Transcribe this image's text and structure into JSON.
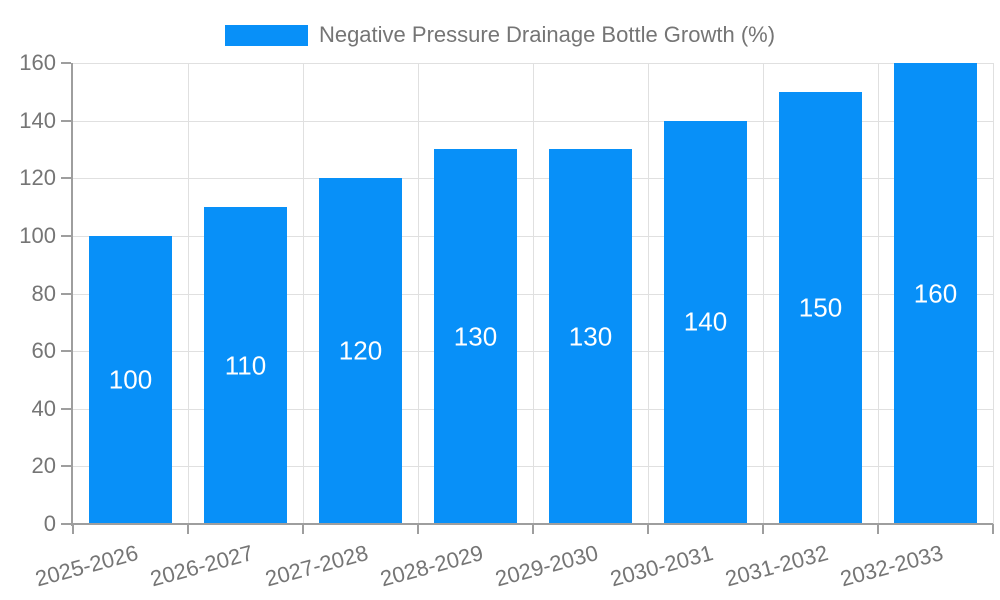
{
  "chart_data": {
    "type": "bar",
    "categories": [
      "2025-2026",
      "2026-2027",
      "2027-2028",
      "2028-2029",
      "2029-2030",
      "2030-2031",
      "2031-2032",
      "2032-2033"
    ],
    "series": [
      {
        "name": "Negative Pressure Drainage Bottle Growth (%)",
        "values": [
          100,
          110,
          120,
          130,
          130,
          140,
          150,
          160
        ]
      }
    ],
    "xlabel": "",
    "ylabel": "",
    "ylim": [
      0,
      160
    ],
    "yticks": [
      0,
      20,
      40,
      60,
      80,
      100,
      120,
      140,
      160
    ],
    "grid": true,
    "legend_position": "top",
    "bar_value_labels": [
      100,
      110,
      120,
      130,
      130,
      140,
      150,
      160
    ],
    "colors": {
      "bar": "#0890f8",
      "bar_label": "#ffffff",
      "axis_text": "#757575",
      "gridline": "#e0e0e0",
      "axis_line": "#9e9e9e",
      "background": "#ffffff"
    }
  }
}
